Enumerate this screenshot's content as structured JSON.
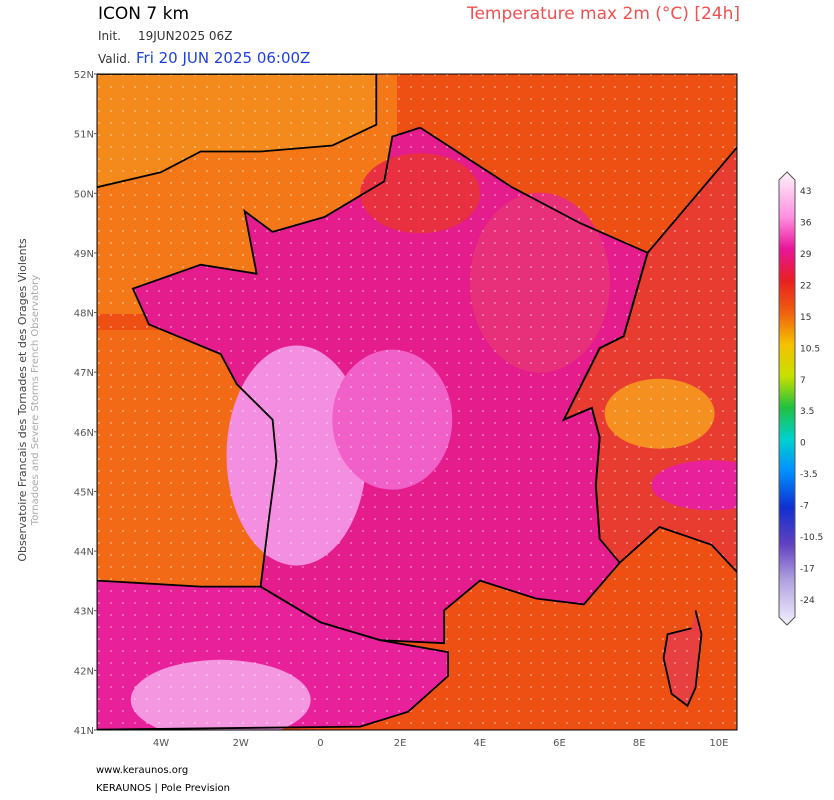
{
  "header": {
    "model": "ICON 7 km",
    "init_label": "Init.",
    "init": "19JUN2025 06Z",
    "valid_label": "Valid.",
    "valid": "Fri 20 JUN 2025 06:00Z",
    "title": "Temperature max 2m (°C) [24h]"
  },
  "map": {
    "lat_labels": [
      "52N",
      "51N",
      "50N",
      "49N",
      "48N",
      "47N",
      "46N",
      "45N",
      "44N",
      "43N",
      "42N",
      "41N"
    ],
    "lon_labels": [
      "4W",
      "2W",
      "0",
      "2E",
      "4E",
      "6E",
      "8E",
      "10E"
    ]
  },
  "colorbar": {
    "labels": [
      "43",
      "36",
      "29",
      "22",
      "15",
      "10.5",
      "7",
      "3.5",
      "0",
      "-3.5",
      "-7",
      "-10.5",
      "-17",
      "-24"
    ]
  },
  "side": {
    "line1": "Observatoire Francais des Tornades et des Orages Violents",
    "line2": "Tornadoes and Severe Storms French Observatory"
  },
  "footer": {
    "site": "www.keraunos.org",
    "brand": "KERAUNOS | Pole Prevision"
  }
}
